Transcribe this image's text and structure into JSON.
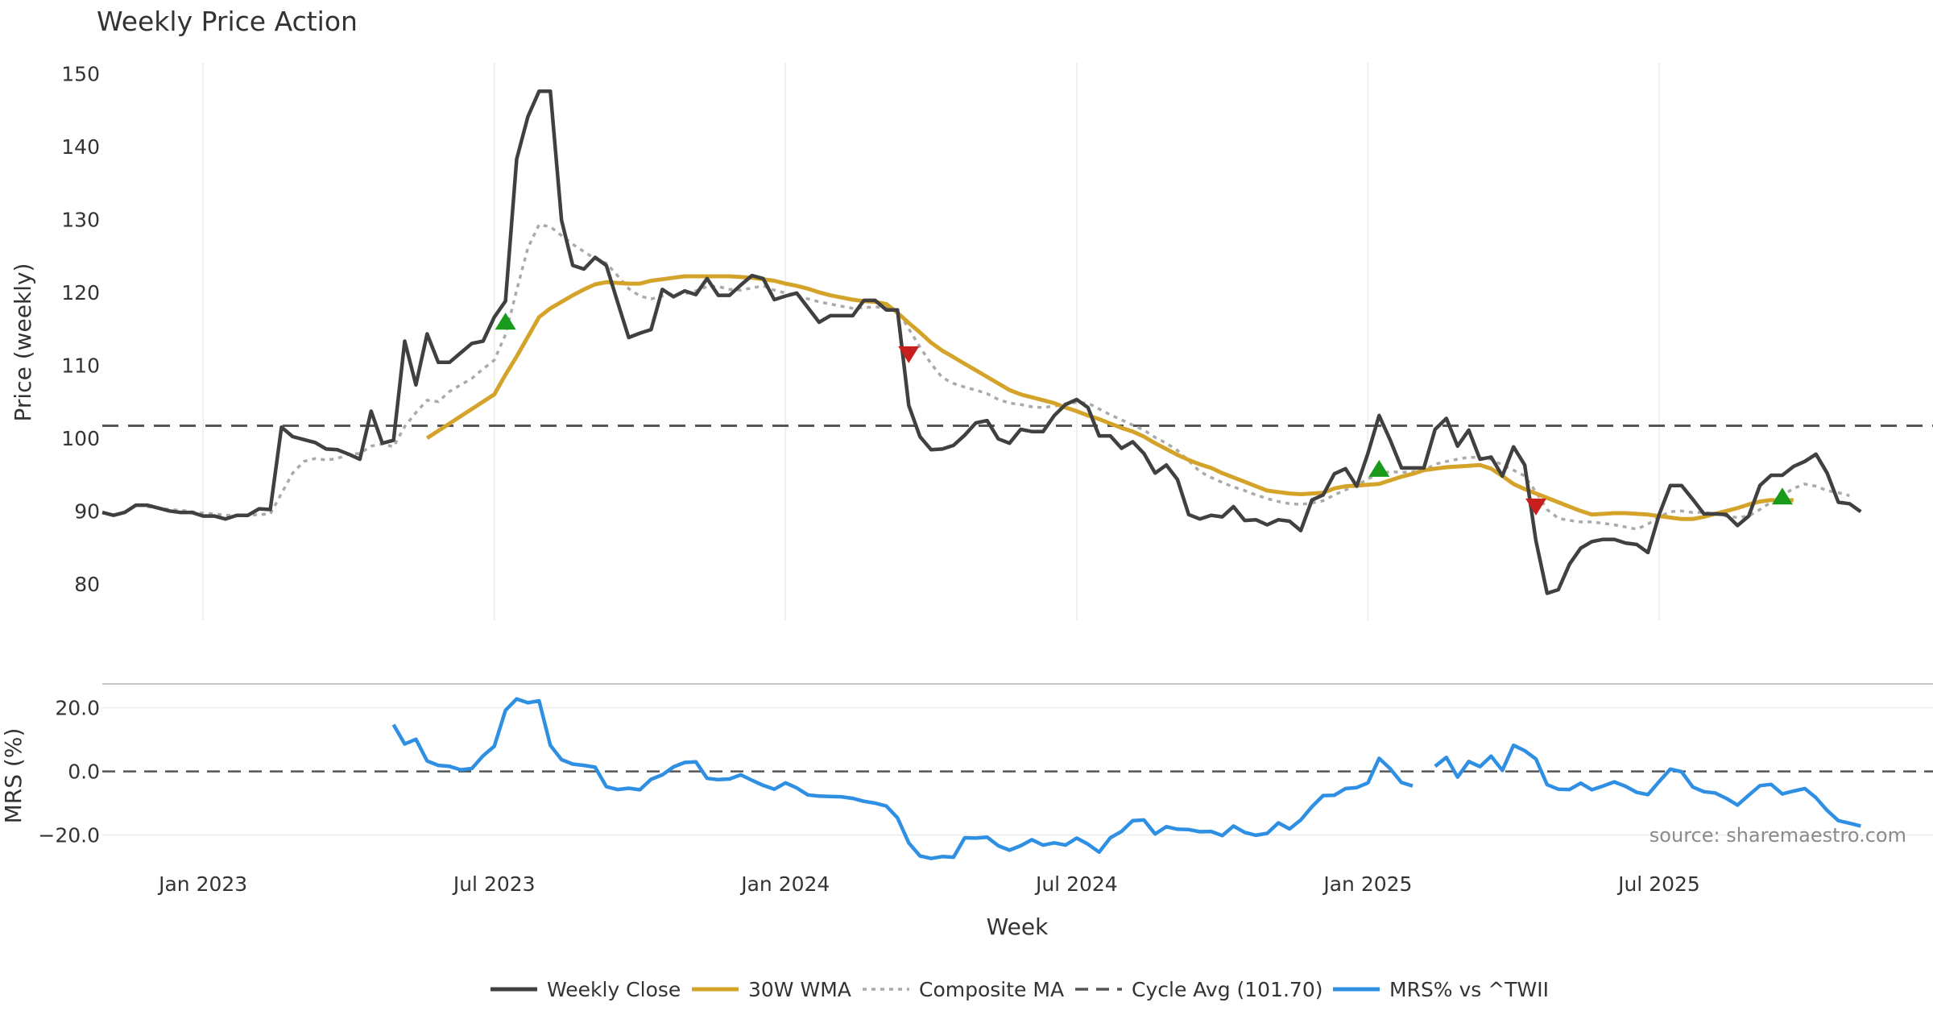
{
  "chart_data": {
    "type": "line",
    "title": "Weekly Price Action",
    "xlabel": "Week",
    "source": "source: sharemaestro.com",
    "x_ticks": [
      {
        "label": "Jan 2023",
        "week": 9
      },
      {
        "label": "Jul 2023",
        "week": 35
      },
      {
        "label": "Jan 2024",
        "week": 61
      },
      {
        "label": "Jul 2024",
        "week": 87
      },
      {
        "label": "Jan 2025",
        "week": 113
      },
      {
        "label": "Jul 2025",
        "week": 139
      }
    ],
    "price_panel": {
      "ylabel": "Price (weekly)",
      "ylim": [
        75,
        151.5
      ],
      "yticks": [
        "80",
        "90",
        "100",
        "110",
        "120",
        "130",
        "140",
        "150"
      ],
      "cycle_avg": 101.7,
      "series": [
        {
          "name": "Weekly Close",
          "color": "#404040",
          "style": "solid",
          "values": [
            89.8,
            89.4,
            89.8,
            90.8,
            90.8,
            90.4,
            90,
            89.8,
            89.8,
            89.3,
            89.3,
            88.9,
            89.4,
            89.4,
            90.3,
            90.2,
            101.5,
            100.2,
            99.8,
            99.4,
            98.5,
            98.4,
            97.8,
            97.1,
            103.7,
            99.3,
            99.7,
            113.3,
            107.3,
            114.3,
            110.4,
            110.4,
            111.7,
            113,
            113.3,
            116.6,
            118.8,
            138.3,
            144.1,
            147.6,
            147.6,
            129.9,
            123.7,
            123.2,
            124.8,
            123.7,
            118.7,
            113.8,
            114.4,
            114.9,
            120.4,
            119.4,
            120.2,
            119.7,
            121.9,
            119.6,
            119.6,
            121,
            122.3,
            121.9,
            119,
            119.5,
            119.9,
            117.9,
            115.9,
            116.8,
            116.8,
            116.8,
            118.9,
            118.9,
            117.6,
            117.6,
            104.5,
            100.2,
            98.4,
            98.5,
            99,
            100.4,
            102.1,
            102.4,
            99.9,
            99.3,
            101.2,
            100.9,
            100.9,
            103.1,
            104.6,
            105.3,
            104.2,
            100.3,
            100.3,
            98.6,
            99.5,
            97.9,
            95.2,
            96.3,
            94.3,
            89.5,
            88.9,
            89.4,
            89.2,
            90.6,
            88.7,
            88.8,
            88.1,
            88.8,
            88.6,
            87.3,
            91.5,
            92.2,
            95.1,
            95.8,
            93.4,
            97.9,
            103.1,
            99.7,
            95.9,
            95.9,
            95.9,
            101.2,
            102.7,
            98.9,
            101.1,
            97.1,
            97.4,
            94.8,
            98.8,
            96.3,
            85.9,
            78.7,
            79.2,
            82.7,
            84.9,
            85.8,
            86.1,
            86.1,
            85.6,
            85.4,
            84.3,
            89.5,
            93.5,
            93.5,
            91.6,
            89.6,
            89.6,
            89.5,
            88,
            89.3,
            93.5,
            94.9,
            94.9,
            96.1,
            96.8,
            97.8,
            95.2,
            91.2,
            91,
            89.9
          ]
        },
        {
          "name": "30W WMA",
          "color": "#d4a32a",
          "style": "solid",
          "values": [
            null,
            null,
            null,
            null,
            null,
            null,
            null,
            null,
            null,
            null,
            null,
            null,
            null,
            null,
            null,
            null,
            null,
            null,
            null,
            null,
            null,
            null,
            null,
            null,
            null,
            null,
            null,
            null,
            null,
            100,
            101,
            102,
            103,
            104,
            105,
            106,
            108.7,
            111.2,
            113.9,
            116.6,
            117.8,
            118.7,
            119.6,
            120.4,
            121.1,
            121.4,
            121.3,
            121.2,
            121.2,
            121.6,
            121.8,
            122,
            122.2,
            122.2,
            122.2,
            122.2,
            122.2,
            122.1,
            122,
            121.8,
            121.6,
            121.2,
            120.9,
            120.5,
            120,
            119.6,
            119.3,
            119,
            118.8,
            118.7,
            118.4,
            117.2,
            115.8,
            114.5,
            113.1,
            112,
            111.1,
            110.2,
            109.3,
            108.4,
            107.5,
            106.6,
            106,
            105.6,
            105.2,
            104.8,
            104.2,
            103.7,
            103.1,
            102.6,
            102,
            101.4,
            100.9,
            100.2,
            99.3,
            98.5,
            97.7,
            97,
            96.4,
            95.9,
            95.2,
            94.6,
            94,
            93.4,
            92.8,
            92.6,
            92.4,
            92.3,
            92.4,
            92.5,
            93.1,
            93.4,
            93.5,
            93.6,
            93.7,
            94.2,
            94.7,
            95.1,
            95.6,
            95.8,
            96,
            96.1,
            96.2,
            96.3,
            95.8,
            94.8,
            93.7,
            93,
            92.4,
            91.8,
            91.2,
            90.6,
            90,
            89.5,
            89.6,
            89.7,
            89.7,
            89.6,
            89.5,
            89.3,
            89.1,
            88.9,
            88.9,
            89.2,
            89.6,
            90,
            90.4,
            90.9,
            91.3,
            91.5,
            91.4,
            91.5
          ]
        },
        {
          "name": "Composite MA",
          "color": "#aaaaaa",
          "style": "dotted",
          "values": [
            null,
            null,
            null,
            null,
            90.6,
            90.4,
            90.2,
            90.1,
            89.9,
            89.7,
            89.6,
            89.4,
            89.4,
            89.4,
            89.5,
            89.6,
            92.4,
            95.2,
            96.8,
            97.2,
            97,
            97.2,
            97.8,
            97.9,
            98.9,
            99.2,
            98.8,
            101.6,
            103.5,
            105.2,
            105,
            106.4,
            107.3,
            108.2,
            109.5,
            110.7,
            114.2,
            120.3,
            126.1,
            129.3,
            129,
            127.8,
            126.6,
            125.6,
            124.6,
            124,
            122.3,
            120.5,
            119.5,
            119.1,
            119.5,
            119.8,
            119.8,
            120.2,
            120.8,
            120.8,
            120.4,
            120.3,
            120.6,
            120.9,
            120.3,
            119.9,
            119.6,
            119.1,
            118.7,
            118.4,
            118.1,
            117.8,
            117.9,
            118,
            117.9,
            117.6,
            115,
            112.5,
            110.2,
            108.3,
            107.5,
            107,
            106.6,
            106.1,
            105.3,
            104.8,
            104.6,
            104.3,
            104.2,
            104.4,
            104.7,
            104.9,
            104.8,
            104,
            103.2,
            102.5,
            101.8,
            101.1,
            100.1,
            99.3,
            98.3,
            96.9,
            95.4,
            94.6,
            93.9,
            93.3,
            92.8,
            92.2,
            91.7,
            91.3,
            91,
            90.9,
            91.1,
            91.4,
            92.2,
            92.9,
            93.5,
            94.4,
            95.1,
            95.4,
            95.3,
            95.4,
            95.6,
            96.4,
            96.8,
            97.1,
            97.4,
            97.3,
            97.1,
            96.3,
            95.6,
            94.8,
            92.6,
            90.2,
            89,
            88.7,
            88.5,
            88.5,
            88.3,
            88.1,
            87.8,
            87.5,
            88.2,
            89.2,
            89.9,
            90,
            89.8,
            89.8,
            89.6,
            89.3,
            89.1,
            89.3,
            90.2,
            91.2,
            92.1,
            93.1,
            93.7,
            93.4,
            92.8,
            92.5,
            92.1
          ]
        }
      ],
      "buy_signals": [
        {
          "week": 36,
          "price": 116
        },
        {
          "week": 114,
          "price": 95.8
        },
        {
          "week": 150,
          "price": 92
        }
      ],
      "sell_signals": [
        {
          "week": 72,
          "price": 111.5
        },
        {
          "week": 128,
          "price": 90.6
        }
      ]
    },
    "mrs_panel": {
      "ylabel": "MRS (%)",
      "ylim": [
        -28.5,
        26
      ],
      "yticks": [
        {
          "label": "20.0",
          "v": 20
        },
        {
          "label": "0.0",
          "v": 0
        },
        {
          "label": "−20.0",
          "v": -20
        }
      ],
      "series": [
        {
          "name": "MRS% vs ^TWII",
          "color": "#2e8fe3",
          "style": "solid",
          "values": [
            null,
            null,
            null,
            null,
            null,
            null,
            null,
            null,
            null,
            null,
            null,
            null,
            null,
            null,
            null,
            null,
            null,
            null,
            null,
            null,
            null,
            null,
            null,
            null,
            null,
            null,
            14.7,
            8.6,
            10.1,
            3.3,
            1.9,
            1.6,
            0.5,
            0.9,
            4.9,
            7.9,
            19.2,
            22.8,
            21.6,
            22.2,
            8.2,
            3.7,
            2.3,
            1.9,
            1.3,
            -4.8,
            -5.7,
            -5.3,
            -5.8,
            -2.5,
            -1.1,
            1.4,
            2.8,
            3,
            -2.2,
            -2.6,
            -2.4,
            -1.1,
            -2.8,
            -4.4,
            -5.6,
            -3.6,
            -5.2,
            -7.4,
            -7.8,
            -7.9,
            -8,
            -8.5,
            -9.4,
            -10,
            -10.9,
            -14.6,
            -22.5,
            -26.6,
            -27.4,
            -26.8,
            -27,
            -20.9,
            -21,
            -20.7,
            -23.4,
            -24.8,
            -23.4,
            -21.5,
            -23.2,
            -22.5,
            -23.2,
            -21,
            -22.9,
            -25.4,
            -20.9,
            -18.9,
            -15.5,
            -15.3,
            -19.7,
            -17.4,
            -18.2,
            -18.3,
            -19,
            -18.9,
            -20.2,
            -17.2,
            -19.2,
            -20.1,
            -19.5,
            -16.2,
            -18.1,
            -15.3,
            -11.1,
            -7.6,
            -7.5,
            -5.4,
            -5.1,
            -3.6,
            4.1,
            0.8,
            -3.5,
            -4.6,
            null,
            1.6,
            4.4,
            -1.8,
            3.1,
            1.5,
            4.8,
            0.3,
            8.2,
            6.5,
            3.9,
            -4.2,
            -5.6,
            -5.7,
            -3.7,
            -5.8,
            -4.6,
            -3.3,
            -4.7,
            -6.6,
            -7.3,
            -3.2,
            0.7,
            -0.1,
            -4.9,
            -6.4,
            -6.8,
            -8.5,
            -10.6,
            -7.5,
            -4.5,
            -4.1,
            -7.1,
            -6.2,
            -5.4,
            -8.3,
            -12.3,
            -15.5,
            -16.3,
            -17.2
          ]
        }
      ]
    },
    "legend": [
      {
        "label": "Weekly Close",
        "color": "#404040",
        "style": "solid"
      },
      {
        "label": "30W WMA",
        "color": "#d4a32a",
        "style": "solid"
      },
      {
        "label": "Composite MA",
        "color": "#aaaaaa",
        "style": "dotted"
      },
      {
        "label": "Cycle Avg (101.70)",
        "color": "#555555",
        "style": "dashed"
      },
      {
        "label": "MRS% vs ^TWII",
        "color": "#2e8fe3",
        "style": "solid"
      }
    ]
  }
}
